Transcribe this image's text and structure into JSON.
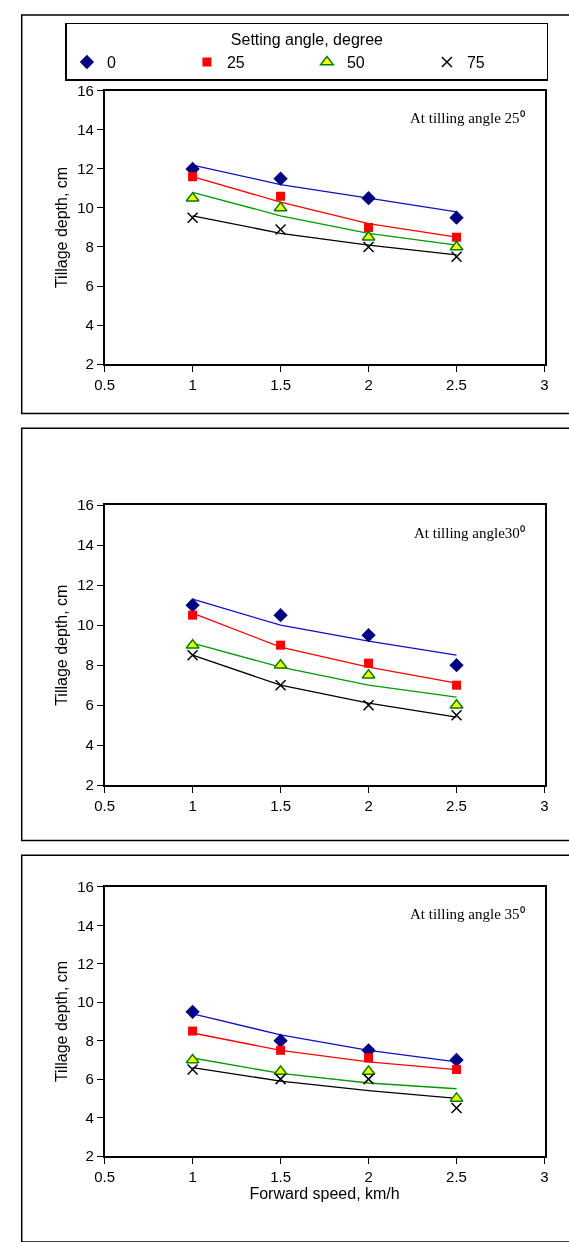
{
  "chart_data": [
    {
      "type": "scatter",
      "legend_title": "Setting angle, degree",
      "legend": "top",
      "annotations": [
        "At tilling angle 25⁰"
      ],
      "ylabel": "Tillage depth, cm",
      "x": [
        1,
        1.5,
        2,
        2.5
      ],
      "xlim": [
        0.5,
        3
      ],
      "xticks": [
        0.5,
        1,
        1.5,
        2,
        2.5,
        3
      ],
      "ylim": [
        2,
        16
      ],
      "yticks": [
        2,
        4,
        6,
        8,
        10,
        12,
        14,
        16
      ],
      "series": [
        {
          "type": "line",
          "color": "#1010c0",
          "x": [
            1,
            1.5,
            2,
            2.5
          ],
          "values": [
            12.2,
            11.2,
            10.5,
            9.8
          ]
        },
        {
          "type": "line",
          "color": "#ff0000",
          "x": [
            1,
            1.5,
            2,
            2.5
          ],
          "values": [
            11.6,
            10.3,
            9.2,
            8.5
          ]
        },
        {
          "type": "line",
          "color": "#009900",
          "x": [
            1,
            1.5,
            2,
            2.5
          ],
          "values": [
            10.8,
            9.6,
            8.7,
            8.1
          ]
        },
        {
          "type": "line",
          "color": "#000000",
          "x": [
            1,
            1.5,
            2,
            2.5
          ],
          "values": [
            9.6,
            8.7,
            8.1,
            7.6
          ]
        },
        {
          "name": "0",
          "color": "#000080",
          "marker": "diamond",
          "values": [
            12,
            11.5,
            10.5,
            9.5
          ]
        },
        {
          "name": "25",
          "color": "#ff0000",
          "marker": "square",
          "values": [
            11.6,
            10.6,
            9.0,
            8.5
          ]
        },
        {
          "name": "50",
          "color": "#ffff00",
          "marker": "triangle",
          "values": [
            10.5,
            10.0,
            8.5,
            8.0
          ]
        },
        {
          "name": "75",
          "color": "#000000",
          "marker": "cross",
          "values": [
            9.5,
            8.9,
            8.0,
            7.5
          ]
        }
      ]
    },
    {
      "type": "scatter",
      "annotations": [
        "At tilling angle30⁰"
      ],
      "ylabel": "Tillage depth, cm",
      "x": [
        1,
        1.5,
        2,
        2.5
      ],
      "xlim": [
        0.5,
        3
      ],
      "xticks": [
        0.5,
        1,
        1.5,
        2,
        2.5,
        3
      ],
      "ylim": [
        2,
        16
      ],
      "yticks": [
        2,
        4,
        6,
        8,
        10,
        12,
        14,
        16
      ],
      "series": [
        {
          "type": "line",
          "color": "#1010c0",
          "x": [
            1,
            1.5,
            2,
            2.5
          ],
          "values": [
            11.3,
            10.0,
            9.2,
            8.5
          ]
        },
        {
          "type": "line",
          "color": "#ff0000",
          "x": [
            1,
            1.5,
            2,
            2.5
          ],
          "values": [
            10.6,
            8.9,
            7.9,
            7.1
          ]
        },
        {
          "type": "line",
          "color": "#009900",
          "x": [
            1,
            1.5,
            2,
            2.5
          ],
          "values": [
            9.1,
            7.9,
            7.0,
            6.4
          ]
        },
        {
          "type": "line",
          "color": "#000000",
          "x": [
            1,
            1.5,
            2,
            2.5
          ],
          "values": [
            8.5,
            7.0,
            6.1,
            5.4
          ]
        },
        {
          "color": "#000080",
          "marker": "diamond",
          "values": [
            11,
            10.5,
            9.5,
            8.0
          ]
        },
        {
          "color": "#ff0000",
          "marker": "square",
          "values": [
            10.5,
            9.0,
            8.1,
            7.0
          ]
        },
        {
          "color": "#ffff00",
          "marker": "triangle",
          "values": [
            9.0,
            8.0,
            7.5,
            6.0
          ]
        },
        {
          "color": "#000000",
          "marker": "cross",
          "values": [
            8.5,
            7.0,
            6.0,
            5.5
          ]
        }
      ]
    },
    {
      "type": "scatter",
      "annotations": [
        "At tilling angle 35⁰"
      ],
      "ylabel": "Tillage depth, cm",
      "xlabel": "Forward speed, km/h",
      "x": [
        1,
        1.5,
        2,
        2.5
      ],
      "xlim": [
        0.5,
        3
      ],
      "xticks": [
        0.5,
        1,
        1.5,
        2,
        2.5,
        3
      ],
      "ylim": [
        2,
        16
      ],
      "yticks": [
        2,
        4,
        6,
        8,
        10,
        12,
        14,
        16
      ],
      "series": [
        {
          "type": "line",
          "color": "#1010c0",
          "x": [
            1,
            1.5,
            2,
            2.5
          ],
          "values": [
            9.4,
            8.3,
            7.5,
            6.9
          ]
        },
        {
          "type": "line",
          "color": "#ff0000",
          "x": [
            1,
            1.5,
            2,
            2.5
          ],
          "values": [
            8.4,
            7.5,
            6.9,
            6.5
          ]
        },
        {
          "type": "line",
          "color": "#009900",
          "x": [
            1,
            1.5,
            2,
            2.5
          ],
          "values": [
            7.1,
            6.3,
            5.8,
            5.5
          ]
        },
        {
          "type": "line",
          "color": "#000000",
          "x": [
            1,
            1.5,
            2,
            2.5
          ],
          "values": [
            6.6,
            5.9,
            5.4,
            5.0
          ]
        },
        {
          "color": "#000080",
          "marker": "diamond",
          "values": [
            9.5,
            8.0,
            7.5,
            7.0
          ]
        },
        {
          "color": "#ff0000",
          "marker": "square",
          "values": [
            8.5,
            7.5,
            7.1,
            6.5
          ]
        },
        {
          "color": "#ffff00",
          "marker": "triangle",
          "values": [
            7.0,
            6.4,
            6.4,
            5.0
          ]
        },
        {
          "color": "#000000",
          "marker": "cross",
          "values": [
            6.5,
            6.0,
            6.0,
            4.5
          ]
        }
      ]
    }
  ]
}
